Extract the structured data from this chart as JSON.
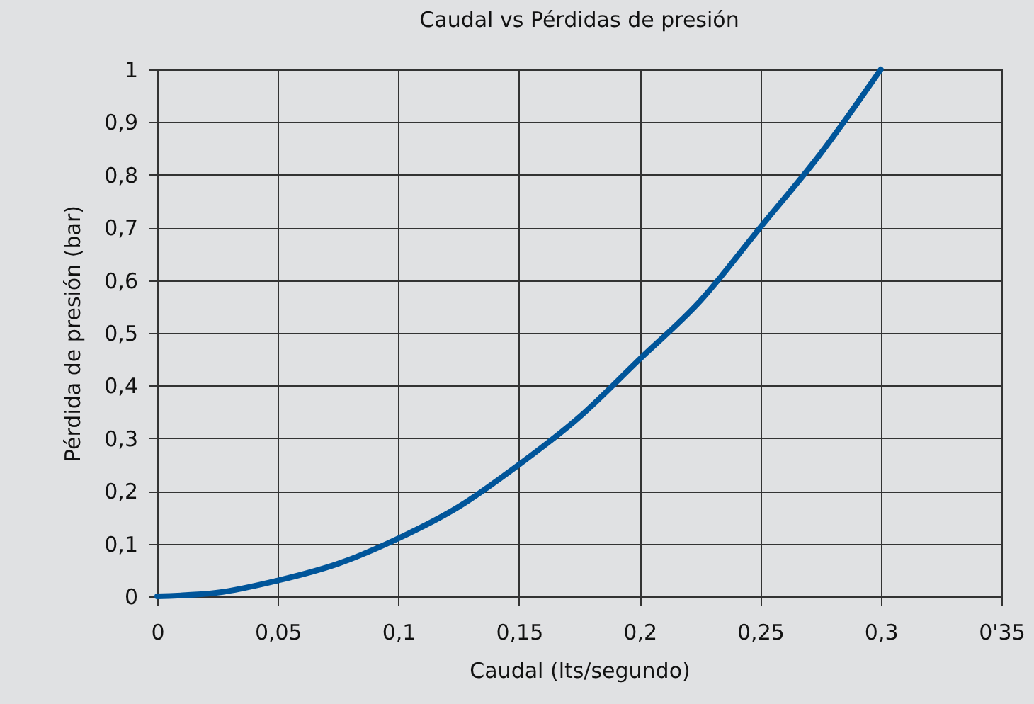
{
  "chart_data": {
    "type": "line",
    "title": "Caudal vs Pérdidas de presión",
    "xlabel": "Caudal (lts/segundo)",
    "ylabel": "Pérdida de presión (bar)",
    "x": [
      0,
      0.025,
      0.05,
      0.075,
      0.1,
      0.125,
      0.15,
      0.175,
      0.2,
      0.225,
      0.25,
      0.275,
      0.3
    ],
    "series": [
      {
        "color": "#00559a",
        "values": [
          0,
          0.007,
          0.03,
          0.062,
          0.11,
          0.17,
          0.25,
          0.34,
          0.45,
          0.56,
          0.7,
          0.84,
          1
        ]
      }
    ],
    "xlim": [
      0,
      0.35
    ],
    "ylim": [
      0,
      1
    ],
    "xticks": [
      0,
      {
        "value": 0.05,
        "label": "0,05"
      },
      {
        "value": 0.1,
        "label": "0,1"
      },
      {
        "value": 0.15,
        "label": "0,15"
      },
      {
        "value": 0.2,
        "label": "0,2"
      },
      {
        "value": 0.25,
        "label": "0,25"
      },
      {
        "value": 0.3,
        "label": "0,3"
      },
      {
        "value": 0.35,
        "label": "0'35"
      }
    ],
    "yticks": [
      0,
      {
        "value": 0.1,
        "label": "0,1"
      },
      {
        "value": 0.2,
        "label": "0,2"
      },
      {
        "value": 0.3,
        "label": "0,3"
      },
      {
        "value": 0.4,
        "label": "0,4"
      },
      {
        "value": 0.5,
        "label": "0,5"
      },
      {
        "value": 0.6,
        "label": "0,6"
      },
      {
        "value": 0.7,
        "label": "0,7"
      },
      {
        "value": 0.8,
        "label": "0,8"
      },
      {
        "value": 0.9,
        "label": "0,9"
      },
      1
    ],
    "grid": true,
    "line_style": "solid"
  }
}
